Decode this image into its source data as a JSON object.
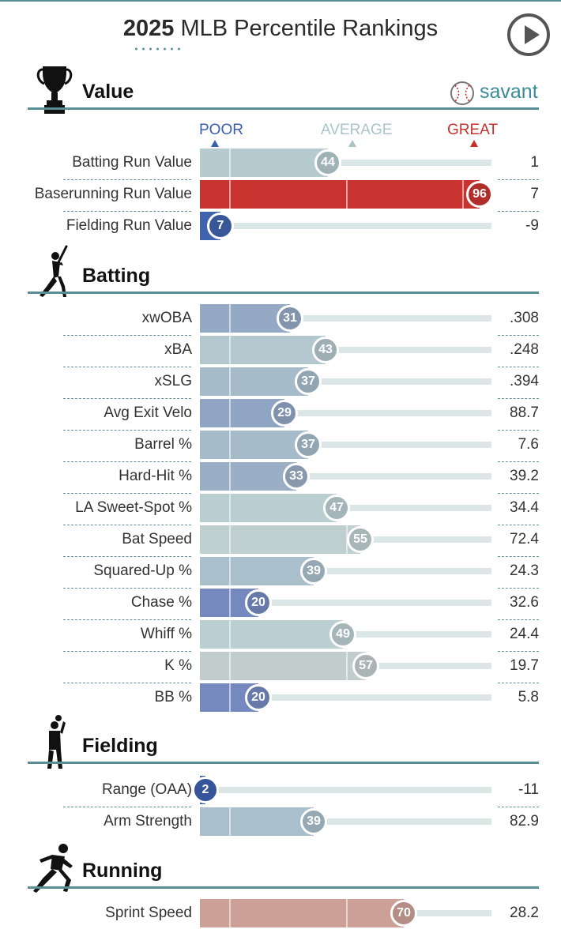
{
  "header": {
    "title_year": "2025",
    "title_rest": "MLB Percentile Rankings"
  },
  "brand": {
    "name": "savant"
  },
  "scale": {
    "poor": "POOR",
    "average": "AVERAGE",
    "great": "GREAT",
    "poor_color": "#3a5fad",
    "average_color": "#a9c5c9",
    "great_color": "#c9302c"
  },
  "icons": {
    "play": "play-button-icon",
    "value": "trophy-icon",
    "batting": "batter-icon",
    "fielding": "fielder-icon",
    "running": "runner-icon",
    "brand": "baseball-icon"
  },
  "chart_data": {
    "type": "bar",
    "orientation": "horizontal",
    "title": "2025 MLB Percentile Rankings",
    "xlim": [
      0,
      100
    ],
    "sections": [
      {
        "name": "Value",
        "rows": [
          {
            "label": "Batting Run Value",
            "percentile": 44,
            "value": "1",
            "color": "#b5cbd0"
          },
          {
            "label": "Baserunning Run Value",
            "percentile": 96,
            "value": "7",
            "color": "#c9332f"
          },
          {
            "label": "Fielding Run Value",
            "percentile": 7,
            "value": "-9",
            "color": "#3f63ae"
          }
        ]
      },
      {
        "name": "Batting",
        "rows": [
          {
            "label": "xwOBA",
            "percentile": 31,
            "value": ".308",
            "color": "#94a9c4"
          },
          {
            "label": "xBA",
            "percentile": 43,
            "value": ".248",
            "color": "#b2c7ce"
          },
          {
            "label": "xSLG",
            "percentile": 37,
            "value": ".394",
            "color": "#a5bbca"
          },
          {
            "label": "Avg Exit Velo",
            "percentile": 29,
            "value": "88.7",
            "color": "#90a5c3"
          },
          {
            "label": "Barrel %",
            "percentile": 37,
            "value": "7.6",
            "color": "#a5bbca"
          },
          {
            "label": "Hard-Hit %",
            "percentile": 33,
            "value": "39.2",
            "color": "#9aaec6"
          },
          {
            "label": "LA Sweet-Spot %",
            "percentile": 47,
            "value": "34.4",
            "color": "#b9ced1"
          },
          {
            "label": "Bat Speed",
            "percentile": 55,
            "value": "72.4",
            "color": "#bfcfd0"
          },
          {
            "label": "Squared-Up %",
            "percentile": 39,
            "value": "24.3",
            "color": "#a9bfcc"
          },
          {
            "label": "Chase %",
            "percentile": 20,
            "value": "32.6",
            "color": "#7589bf"
          },
          {
            "label": "Whiff %",
            "percentile": 49,
            "value": "24.4",
            "color": "#bacfd1"
          },
          {
            "label": "K %",
            "percentile": 57,
            "value": "19.7",
            "color": "#c1cccc"
          },
          {
            "label": "BB %",
            "percentile": 20,
            "value": "5.8",
            "color": "#7589bf"
          }
        ]
      },
      {
        "name": "Fielding",
        "rows": [
          {
            "label": "Range (OAA)",
            "percentile": 2,
            "value": "-11",
            "color": "#3c5fae"
          },
          {
            "label": "Arm Strength",
            "percentile": 39,
            "value": "82.9",
            "color": "#a9bfcc"
          }
        ]
      },
      {
        "name": "Running",
        "rows": [
          {
            "label": "Sprint Speed",
            "percentile": 70,
            "value": "28.2",
            "color": "#cca096"
          }
        ]
      }
    ]
  }
}
